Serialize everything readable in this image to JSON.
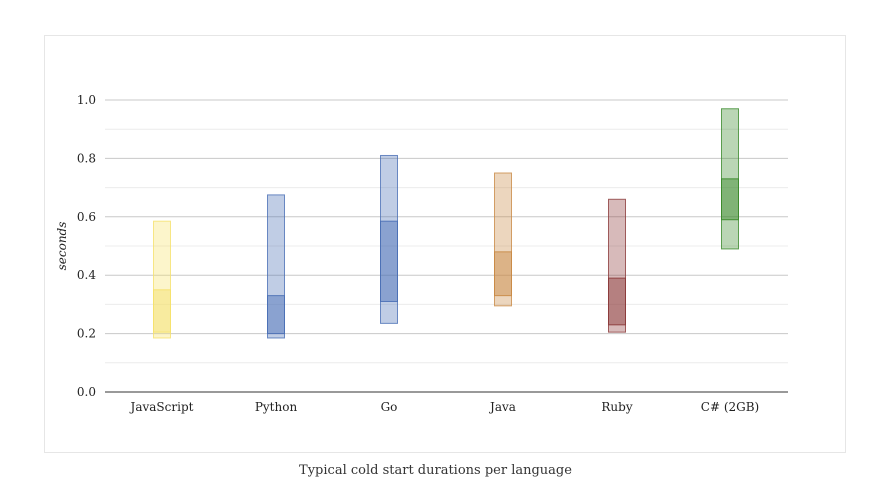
{
  "caption": "Typical cold start durations per language",
  "chart_data": {
    "type": "box",
    "title": "",
    "xlabel": "",
    "ylabel": "seconds",
    "ylim": [
      0,
      1.0
    ],
    "yticks": [
      "0.0",
      "0.2",
      "0.4",
      "0.6",
      "0.8",
      "1.0"
    ],
    "grid": true,
    "categories": [
      "JavaScript",
      "Python",
      "Go",
      "Java",
      "Ruby",
      "C# (2GB)"
    ],
    "series": [
      {
        "category": "JavaScript",
        "min": 0.185,
        "q1": 0.205,
        "median": 0.35,
        "q3": 0.35,
        "max": 0.585,
        "color": "#f5e16b"
      },
      {
        "category": "Python",
        "min": 0.185,
        "q1": 0.2,
        "median": 0.33,
        "q3": 0.33,
        "max": 0.675,
        "color": "#4a6fb5"
      },
      {
        "category": "Go",
        "min": 0.235,
        "q1": 0.31,
        "median": 0.585,
        "q3": 0.585,
        "max": 0.81,
        "color": "#4a6fb5"
      },
      {
        "category": "Java",
        "min": 0.295,
        "q1": 0.33,
        "median": 0.48,
        "q3": 0.48,
        "max": 0.75,
        "color": "#c98a45"
      },
      {
        "category": "Ruby",
        "min": 0.205,
        "q1": 0.23,
        "median": 0.39,
        "q3": 0.39,
        "max": 0.66,
        "color": "#8b3a3a"
      },
      {
        "category": "C# (2GB)",
        "min": 0.49,
        "q1": 0.59,
        "median": 0.73,
        "q3": 0.73,
        "max": 0.97,
        "color": "#3a8a2a"
      }
    ]
  }
}
